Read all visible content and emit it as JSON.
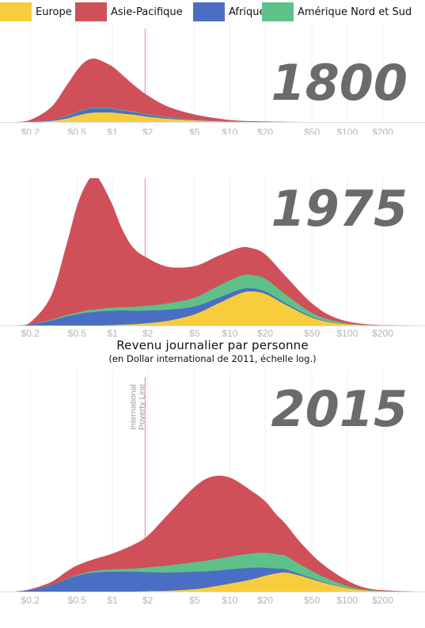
{
  "legend": [
    {
      "label": "Europe",
      "color": "#f7cd3e"
    },
    {
      "label": "Asie-Pacifique",
      "color": "#d0505a"
    },
    {
      "label": "Afrique",
      "color": "#4a6ec3"
    },
    {
      "label": "Amérique Nord et Sud",
      "color": "#5ec18a"
    }
  ],
  "caption": {
    "title": "Revenu journalier par personne",
    "subtitle": "(en Dollar international de 2011, échelle log.)"
  },
  "poverty_line_label": "International Poverty Line",
  "chart_data": [
    {
      "type": "area",
      "title": "1800",
      "x_scale": "log",
      "xlim": [
        0.15,
        400
      ],
      "x_ticks": [
        "$0.2",
        "$0.5",
        "$1",
        "$2",
        "$5",
        "$10",
        "$20",
        "$50",
        "$100",
        "$200"
      ],
      "poverty_line": 1.9,
      "stacking": "stacked",
      "x": [
        0.15,
        0.2,
        0.3,
        0.4,
        0.5,
        0.6,
        0.7,
        0.8,
        1,
        1.2,
        1.5,
        2,
        3,
        5,
        8,
        12,
        20,
        40,
        100,
        400
      ],
      "series": [
        {
          "name": "Europe",
          "values": [
            0,
            0,
            1,
            3,
            6,
            8,
            9,
            9,
            9,
            8,
            7,
            5,
            3,
            1.5,
            0.6,
            0.2,
            0,
            0,
            0,
            0
          ]
        },
        {
          "name": "Afrique",
          "values": [
            0,
            0,
            1,
            2,
            3,
            4,
            4,
            4,
            3.5,
            3,
            2.5,
            1.8,
            1,
            0.4,
            0.1,
            0,
            0,
            0,
            0,
            0
          ]
        },
        {
          "name": "Amérique Nord et Sud",
          "values": [
            0,
            0,
            0,
            0.5,
            0.5,
            0.5,
            0.6,
            0.6,
            0.6,
            0.5,
            0.5,
            0.5,
            0.5,
            0.3,
            0.1,
            0,
            0,
            0,
            0,
            0
          ]
        },
        {
          "name": "Asie-Pacifique",
          "values": [
            0,
            2,
            12,
            28,
            40,
            46,
            47,
            45,
            40,
            34,
            26,
            18,
            10,
            5,
            2.5,
            1,
            0.5,
            0,
            0,
            0
          ]
        }
      ]
    },
    {
      "type": "area",
      "title": "1975",
      "x_scale": "log",
      "xlim": [
        0.15,
        400
      ],
      "x_ticks": [
        "$0.2",
        "$0.5",
        "$1",
        "$2",
        "$5",
        "$10",
        "$20",
        "$50",
        "$100",
        "$200"
      ],
      "poverty_line": 1.9,
      "stacking": "stacked",
      "x": [
        0.15,
        0.2,
        0.3,
        0.4,
        0.5,
        0.6,
        0.7,
        0.8,
        1,
        1.2,
        1.5,
        2,
        3,
        5,
        8,
        12,
        15,
        20,
        30,
        50,
        80,
        150,
        400
      ],
      "series": [
        {
          "name": "Europe",
          "values": [
            0,
            0,
            0,
            0,
            0,
            0,
            0,
            0,
            0.5,
            1,
            1.5,
            3,
            6,
            14,
            28,
            40,
            43,
            40,
            26,
            10,
            3,
            0.5,
            0
          ]
        },
        {
          "name": "Afrique",
          "values": [
            0,
            1,
            6,
            11,
            14,
            16,
            17,
            18,
            18,
            18,
            17,
            16,
            14,
            10,
            7,
            5,
            4,
            3,
            2,
            1,
            0.5,
            0,
            0
          ]
        },
        {
          "name": "Amérique Nord et Sud",
          "values": [
            0,
            0,
            1,
            2,
            2,
            3,
            3,
            3,
            4,
            4,
            5,
            6,
            8,
            11,
            15,
            17,
            17,
            16,
            11,
            5,
            2,
            0,
            0
          ]
        },
        {
          "name": "Asie-Pacifique",
          "values": [
            0,
            3,
            30,
            85,
            135,
            160,
            170,
            160,
            130,
            100,
            75,
            60,
            46,
            40,
            38,
            36,
            34,
            31,
            23,
            12,
            4,
            1,
            0
          ]
        }
      ]
    },
    {
      "type": "area",
      "title": "2015",
      "x_scale": "log",
      "xlim": [
        0.15,
        400
      ],
      "x_ticks": [
        "$0.2",
        "$0.5",
        "$1",
        "$2",
        "$5",
        "$10",
        "$20",
        "$50",
        "$100",
        "$200"
      ],
      "poverty_line": 1.9,
      "stacking": "stacked",
      "x": [
        0.15,
        0.2,
        0.3,
        0.4,
        0.5,
        0.7,
        1,
        1.5,
        2,
        3,
        5,
        7,
        10,
        15,
        20,
        25,
        30,
        40,
        60,
        100,
        150,
        250,
        400
      ],
      "series": [
        {
          "name": "Europe",
          "values": [
            0,
            0,
            0,
            0,
            0,
            0,
            0,
            0,
            0.5,
            1,
            3,
            6,
            10,
            15,
            20,
            23,
            24,
            20,
            12,
            4,
            1,
            0,
            0
          ]
        },
        {
          "name": "Afrique",
          "values": [
            0,
            2,
            8,
            15,
            20,
            24,
            25,
            25,
            24,
            23,
            22,
            20,
            18,
            15,
            10,
            6,
            4,
            2,
            1,
            0,
            0,
            0,
            0
          ]
        },
        {
          "name": "Amérique Nord et Sud",
          "values": [
            0,
            0,
            0,
            0.5,
            1,
            2,
            3,
            4,
            6,
            9,
            12,
            14,
            16,
            18,
            19,
            18,
            17,
            12,
            7,
            3,
            1,
            0.5,
            0
          ]
        },
        {
          "name": "Asie-Pacifique",
          "values": [
            0,
            1,
            4,
            9,
            12,
            15,
            20,
            30,
            40,
            65,
            95,
            105,
            100,
            80,
            65,
            50,
            40,
            28,
            16,
            7,
            2,
            0.5,
            0
          ]
        }
      ]
    }
  ]
}
